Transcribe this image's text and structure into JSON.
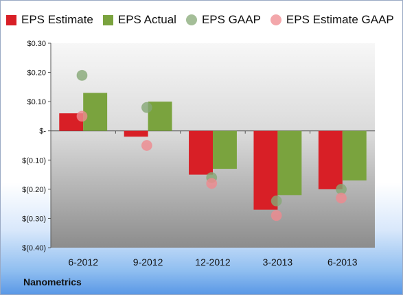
{
  "chart_data": {
    "type": "bar",
    "categories": [
      "6-2012",
      "9-2012",
      "12-2012",
      "3-2013",
      "6-2013"
    ],
    "series": [
      {
        "name": "EPS Estimate",
        "kind": "bar",
        "color": "#d81f26",
        "values": [
          0.06,
          -0.02,
          -0.15,
          -0.27,
          -0.2
        ]
      },
      {
        "name": "EPS Actual",
        "kind": "bar",
        "color": "#7aa33e",
        "values": [
          0.13,
          0.1,
          -0.13,
          -0.22,
          -0.17
        ]
      },
      {
        "name": "EPS GAAP",
        "kind": "point",
        "color": "#86a875",
        "values": [
          0.19,
          0.08,
          -0.16,
          -0.24,
          -0.2
        ]
      },
      {
        "name": "EPS Estimate GAAP",
        "kind": "point",
        "color": "#ef8a8f",
        "values": [
          0.05,
          -0.05,
          -0.18,
          -0.29,
          -0.23
        ]
      }
    ],
    "y_ticks": [
      {
        "value": 0.3,
        "label": "$0.30"
      },
      {
        "value": 0.2,
        "label": "$0.20"
      },
      {
        "value": 0.1,
        "label": "$0.10"
      },
      {
        "value": 0,
        "label": "$-"
      },
      {
        "value": -0.1,
        "label": "$(0.10)"
      },
      {
        "value": -0.2,
        "label": "$(0.20)"
      },
      {
        "value": -0.3,
        "label": "$(0.30)"
      },
      {
        "value": -0.4,
        "label": "$(0.40)"
      }
    ],
    "ylim": [
      -0.4,
      0.3
    ],
    "legend_position": "top",
    "grid": false,
    "title": "",
    "xlabel": "",
    "ylabel": ""
  },
  "company_label": "Nanometrics"
}
